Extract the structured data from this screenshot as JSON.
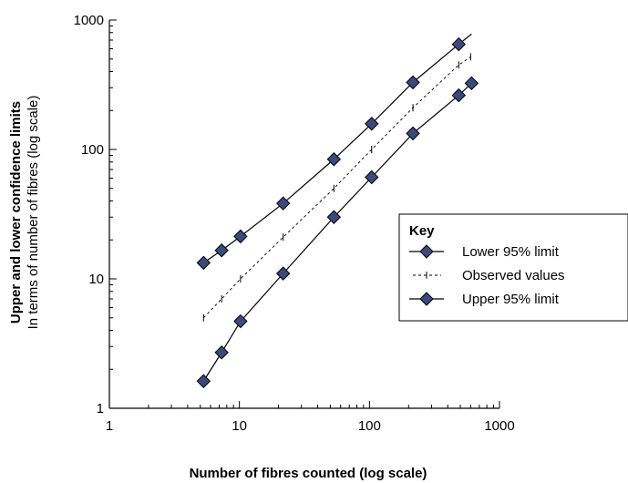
{
  "chart_data": {
    "type": "line",
    "x_scale": "log",
    "y_scale": "log",
    "xlim": [
      1,
      1000
    ],
    "ylim": [
      1,
      1000
    ],
    "x_ticks": [
      "1",
      "10",
      "100",
      "1000"
    ],
    "y_ticks": [
      "1",
      "10",
      "100",
      "1000"
    ],
    "xlabel": "Number of fibres counted (log scale)",
    "ylabel": "Upper and lower confidence limits",
    "ylabel_sub": "In terms of number of fibres (log scale)",
    "legend": {
      "title": "Key",
      "placement": "right",
      "entries": [
        "Lower 95% limit",
        "Observed values",
        "Upper 95% limit"
      ]
    },
    "series": [
      {
        "name": "Upper 95% limit",
        "color": "#3b4a7a",
        "style": "solid-diamond",
        "points": [
          [
            5.3,
            13.3
          ],
          [
            7.3,
            16.6
          ],
          [
            10.2,
            21.3
          ],
          [
            21.7,
            38.3
          ],
          [
            53.3,
            84
          ],
          [
            104,
            158
          ],
          [
            216,
            330
          ],
          [
            486,
            650
          ]
        ],
        "line_end": [
          610,
          780
        ]
      },
      {
        "name": "Observed values",
        "color": "#000000",
        "style": "dashed-tick",
        "points": [
          [
            5.3,
            5
          ],
          [
            7.3,
            7
          ],
          [
            10.2,
            10
          ],
          [
            21.7,
            21
          ],
          [
            53.3,
            50
          ],
          [
            104,
            100
          ],
          [
            216,
            210
          ],
          [
            486,
            450
          ],
          [
            600,
            520
          ]
        ]
      },
      {
        "name": "Lower 95% limit",
        "color": "#3b4a7a",
        "style": "solid-diamond",
        "points": [
          [
            5.3,
            1.62
          ],
          [
            7.3,
            2.7
          ],
          [
            10.2,
            4.7
          ],
          [
            21.7,
            11
          ],
          [
            53.3,
            30
          ],
          [
            104,
            61
          ],
          [
            216,
            133
          ],
          [
            486,
            262
          ],
          [
            610,
            325
          ]
        ]
      }
    ]
  }
}
